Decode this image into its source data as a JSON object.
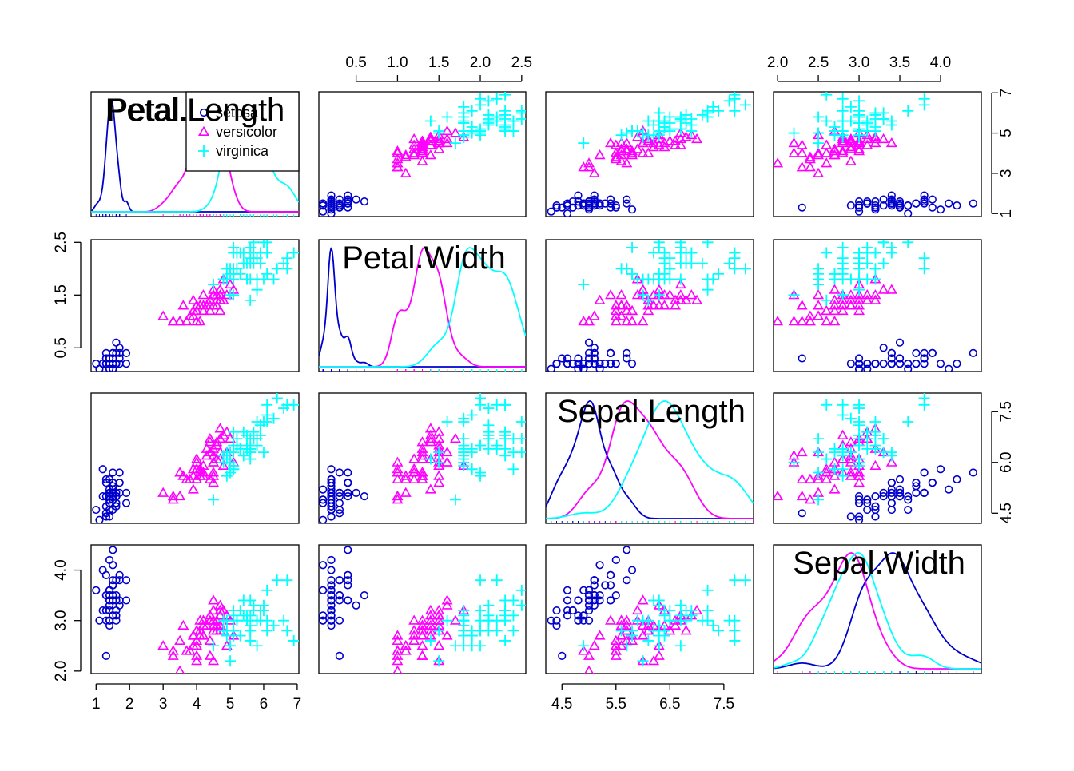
{
  "chart_data": {
    "type": "scatter",
    "variables": [
      "Petal.Length",
      "Petal.Width",
      "Sepal.Length",
      "Sepal.Width"
    ],
    "ranges": {
      "Petal.Length": [
        0.85,
        7.05
      ],
      "Petal.Width": [
        0.05,
        2.55
      ],
      "Sepal.Length": [
        4.2,
        8.05
      ],
      "Sepal.Width": [
        1.95,
        4.5
      ]
    },
    "ticks": {
      "Petal.Length": [
        "1",
        "2",
        "3",
        "4",
        "5",
        "6",
        "7"
      ],
      "Petal.Width": [
        "0.5",
        "1.0",
        "1.5",
        "2.0",
        "2.5"
      ],
      "Sepal.Length": [
        "4.5",
        "5.5",
        "6.5",
        "7.5"
      ],
      "Sepal.Width": [
        "2.0",
        "2.5",
        "3.0",
        "3.5",
        "4.0"
      ]
    },
    "left_axis_ticks": {
      "Petal.Width": [
        "0.5",
        "1.5",
        "2.5"
      ],
      "Sepal.Width": [
        "2.0",
        "3.0",
        "4.0"
      ]
    },
    "right_axis_ticks": {
      "Petal.Length": [
        "1",
        "3",
        "5",
        "7"
      ],
      "Sepal.Length": [
        "4.5",
        "6.0",
        "7.5"
      ]
    },
    "legend": {
      "position": "top-right of first panel",
      "entries": [
        {
          "label": "setosa",
          "marker": "circle",
          "color": "#0000CD"
        },
        {
          "label": "versicolor",
          "marker": "triangle",
          "color": "#FF00FF"
        },
        {
          "label": "virginica",
          "marker": "plus",
          "color": "#00FFFF"
        }
      ]
    },
    "series": [
      {
        "name": "setosa",
        "color": "#0000CD",
        "marker": "circle",
        "points": [
          [
            1.4,
            0.2,
            5.1,
            3.5
          ],
          [
            1.4,
            0.2,
            4.9,
            3.0
          ],
          [
            1.3,
            0.2,
            4.7,
            3.2
          ],
          [
            1.5,
            0.2,
            4.6,
            3.1
          ],
          [
            1.4,
            0.2,
            5.0,
            3.6
          ],
          [
            1.7,
            0.4,
            5.4,
            3.9
          ],
          [
            1.4,
            0.3,
            4.6,
            3.4
          ],
          [
            1.5,
            0.2,
            5.0,
            3.4
          ],
          [
            1.4,
            0.2,
            4.4,
            2.9
          ],
          [
            1.5,
            0.1,
            4.9,
            3.1
          ],
          [
            1.5,
            0.2,
            5.4,
            3.7
          ],
          [
            1.6,
            0.2,
            4.8,
            3.4
          ],
          [
            1.4,
            0.1,
            4.8,
            3.0
          ],
          [
            1.1,
            0.1,
            4.3,
            3.0
          ],
          [
            1.2,
            0.2,
            5.8,
            4.0
          ],
          [
            1.5,
            0.4,
            5.7,
            4.4
          ],
          [
            1.3,
            0.4,
            5.4,
            3.9
          ],
          [
            1.4,
            0.3,
            5.1,
            3.5
          ],
          [
            1.7,
            0.3,
            5.7,
            3.8
          ],
          [
            1.5,
            0.3,
            5.1,
            3.8
          ],
          [
            1.7,
            0.2,
            5.4,
            3.4
          ],
          [
            1.5,
            0.4,
            5.1,
            3.7
          ],
          [
            1.0,
            0.2,
            4.6,
            3.6
          ],
          [
            1.7,
            0.5,
            5.1,
            3.3
          ],
          [
            1.9,
            0.2,
            4.8,
            3.4
          ],
          [
            1.6,
            0.2,
            5.0,
            3.0
          ],
          [
            1.6,
            0.4,
            5.0,
            3.4
          ],
          [
            1.5,
            0.2,
            5.2,
            3.5
          ],
          [
            1.4,
            0.2,
            5.2,
            3.4
          ],
          [
            1.6,
            0.2,
            4.7,
            3.2
          ],
          [
            1.6,
            0.2,
            4.8,
            3.1
          ],
          [
            1.5,
            0.4,
            5.4,
            3.4
          ],
          [
            1.5,
            0.1,
            5.2,
            4.1
          ],
          [
            1.4,
            0.2,
            5.5,
            4.2
          ],
          [
            1.5,
            0.2,
            4.9,
            3.1
          ],
          [
            1.2,
            0.2,
            5.0,
            3.2
          ],
          [
            1.3,
            0.2,
            5.5,
            3.5
          ],
          [
            1.4,
            0.1,
            4.9,
            3.6
          ],
          [
            1.3,
            0.2,
            4.4,
            3.0
          ],
          [
            1.5,
            0.2,
            5.1,
            3.4
          ],
          [
            1.3,
            0.3,
            5.0,
            3.5
          ],
          [
            1.3,
            0.3,
            4.5,
            2.3
          ],
          [
            1.3,
            0.2,
            4.4,
            3.2
          ],
          [
            1.6,
            0.6,
            5.0,
            3.5
          ],
          [
            1.9,
            0.4,
            5.1,
            3.8
          ],
          [
            1.4,
            0.3,
            4.8,
            3.0
          ],
          [
            1.6,
            0.2,
            5.1,
            3.8
          ],
          [
            1.4,
            0.2,
            4.6,
            3.2
          ],
          [
            1.5,
            0.2,
            5.3,
            3.7
          ],
          [
            1.4,
            0.2,
            5.0,
            3.3
          ]
        ]
      },
      {
        "name": "versicolor",
        "color": "#FF00FF",
        "marker": "triangle",
        "points": [
          [
            4.7,
            1.4,
            7.0,
            3.2
          ],
          [
            4.5,
            1.5,
            6.4,
            3.2
          ],
          [
            4.9,
            1.5,
            6.9,
            3.1
          ],
          [
            4.0,
            1.3,
            5.5,
            2.3
          ],
          [
            4.6,
            1.5,
            6.5,
            2.8
          ],
          [
            4.5,
            1.3,
            5.7,
            2.8
          ],
          [
            4.7,
            1.6,
            6.3,
            3.3
          ],
          [
            3.3,
            1.0,
            4.9,
            2.4
          ],
          [
            4.6,
            1.3,
            6.6,
            2.9
          ],
          [
            3.9,
            1.4,
            5.2,
            2.7
          ],
          [
            3.5,
            1.0,
            5.0,
            2.0
          ],
          [
            4.2,
            1.5,
            5.9,
            3.0
          ],
          [
            4.0,
            1.0,
            6.0,
            2.2
          ],
          [
            4.7,
            1.4,
            6.1,
            2.9
          ],
          [
            3.6,
            1.3,
            5.6,
            2.9
          ],
          [
            4.4,
            1.4,
            6.7,
            3.1
          ],
          [
            4.5,
            1.5,
            5.6,
            3.0
          ],
          [
            4.1,
            1.0,
            5.8,
            2.7
          ],
          [
            4.5,
            1.5,
            6.2,
            2.2
          ],
          [
            3.9,
            1.1,
            5.6,
            2.5
          ],
          [
            4.8,
            1.8,
            5.9,
            3.2
          ],
          [
            4.0,
            1.3,
            6.1,
            2.8
          ],
          [
            4.9,
            1.5,
            6.3,
            2.5
          ],
          [
            4.7,
            1.2,
            6.1,
            2.8
          ],
          [
            4.3,
            1.3,
            6.4,
            2.9
          ],
          [
            4.4,
            1.4,
            6.6,
            3.0
          ],
          [
            4.8,
            1.4,
            6.8,
            2.8
          ],
          [
            5.0,
            1.7,
            6.7,
            3.0
          ],
          [
            4.5,
            1.5,
            6.0,
            2.9
          ],
          [
            3.5,
            1.0,
            5.7,
            2.6
          ],
          [
            3.8,
            1.1,
            5.5,
            2.4
          ],
          [
            3.7,
            1.0,
            5.5,
            2.4
          ],
          [
            3.9,
            1.2,
            5.8,
            2.7
          ],
          [
            5.1,
            1.6,
            6.0,
            2.7
          ],
          [
            4.5,
            1.5,
            5.4,
            3.0
          ],
          [
            4.5,
            1.6,
            6.0,
            3.4
          ],
          [
            4.7,
            1.5,
            6.7,
            3.1
          ],
          [
            4.4,
            1.3,
            6.3,
            2.3
          ],
          [
            4.1,
            1.3,
            5.6,
            3.0
          ],
          [
            4.0,
            1.3,
            5.5,
            2.5
          ],
          [
            4.4,
            1.2,
            5.5,
            2.6
          ],
          [
            4.6,
            1.4,
            6.1,
            3.0
          ],
          [
            4.0,
            1.2,
            5.8,
            2.6
          ],
          [
            3.3,
            1.0,
            5.0,
            2.3
          ],
          [
            4.2,
            1.3,
            5.6,
            2.7
          ],
          [
            4.2,
            1.2,
            5.7,
            3.0
          ],
          [
            4.2,
            1.3,
            5.7,
            2.9
          ],
          [
            4.3,
            1.3,
            6.2,
            2.9
          ],
          [
            3.0,
            1.1,
            5.1,
            2.5
          ],
          [
            4.1,
            1.3,
            5.7,
            2.8
          ]
        ]
      },
      {
        "name": "virginica",
        "color": "#00FFFF",
        "marker": "plus",
        "points": [
          [
            6.0,
            2.5,
            6.3,
            3.3
          ],
          [
            5.1,
            1.9,
            5.8,
            2.7
          ],
          [
            5.9,
            2.1,
            7.1,
            3.0
          ],
          [
            5.6,
            1.8,
            6.3,
            2.9
          ],
          [
            5.8,
            2.2,
            6.5,
            3.0
          ],
          [
            6.6,
            2.1,
            7.6,
            3.0
          ],
          [
            4.5,
            1.7,
            4.9,
            2.5
          ],
          [
            6.3,
            1.8,
            7.3,
            2.9
          ],
          [
            5.8,
            1.8,
            6.7,
            2.5
          ],
          [
            6.1,
            2.5,
            7.2,
            3.6
          ],
          [
            5.1,
            2.0,
            6.5,
            3.2
          ],
          [
            5.3,
            1.9,
            6.4,
            2.7
          ],
          [
            5.5,
            2.1,
            6.8,
            3.0
          ],
          [
            5.0,
            2.0,
            5.7,
            2.5
          ],
          [
            5.1,
            2.4,
            5.8,
            2.8
          ],
          [
            5.3,
            2.3,
            6.4,
            3.2
          ],
          [
            5.5,
            1.8,
            6.5,
            3.0
          ],
          [
            6.7,
            2.2,
            7.7,
            3.8
          ],
          [
            6.9,
            2.3,
            7.7,
            2.6
          ],
          [
            5.0,
            1.5,
            6.0,
            2.2
          ],
          [
            5.7,
            2.3,
            6.9,
            3.2
          ],
          [
            4.9,
            2.0,
            5.6,
            2.8
          ],
          [
            6.7,
            2.0,
            7.7,
            2.8
          ],
          [
            4.9,
            1.8,
            6.3,
            2.7
          ],
          [
            5.7,
            2.1,
            6.7,
            3.3
          ],
          [
            6.0,
            1.8,
            7.2,
            3.2
          ],
          [
            4.8,
            1.8,
            6.2,
            2.8
          ],
          [
            4.9,
            1.8,
            6.1,
            3.0
          ],
          [
            5.6,
            2.1,
            6.4,
            2.8
          ],
          [
            5.8,
            1.6,
            7.2,
            3.0
          ],
          [
            6.1,
            1.9,
            7.4,
            2.8
          ],
          [
            6.4,
            2.0,
            7.9,
            3.8
          ],
          [
            5.6,
            2.2,
            6.4,
            2.8
          ],
          [
            5.1,
            1.5,
            6.3,
            2.8
          ],
          [
            5.6,
            1.4,
            6.1,
            2.6
          ],
          [
            6.1,
            2.3,
            7.7,
            3.0
          ],
          [
            5.6,
            2.4,
            6.3,
            3.4
          ],
          [
            5.5,
            1.8,
            6.4,
            3.1
          ],
          [
            4.8,
            1.8,
            6.0,
            3.0
          ],
          [
            5.4,
            2.1,
            6.9,
            3.1
          ],
          [
            5.6,
            2.4,
            6.7,
            3.1
          ],
          [
            5.1,
            2.3,
            6.9,
            3.1
          ],
          [
            5.1,
            1.9,
            5.8,
            2.7
          ],
          [
            5.9,
            2.3,
            6.8,
            3.2
          ],
          [
            5.7,
            2.5,
            6.7,
            3.3
          ],
          [
            5.2,
            2.3,
            6.7,
            3.0
          ],
          [
            5.0,
            1.9,
            6.3,
            2.5
          ],
          [
            5.2,
            2.0,
            6.5,
            3.0
          ],
          [
            5.4,
            2.3,
            6.2,
            3.4
          ],
          [
            5.1,
            1.8,
            5.9,
            3.0
          ]
        ]
      }
    ]
  }
}
